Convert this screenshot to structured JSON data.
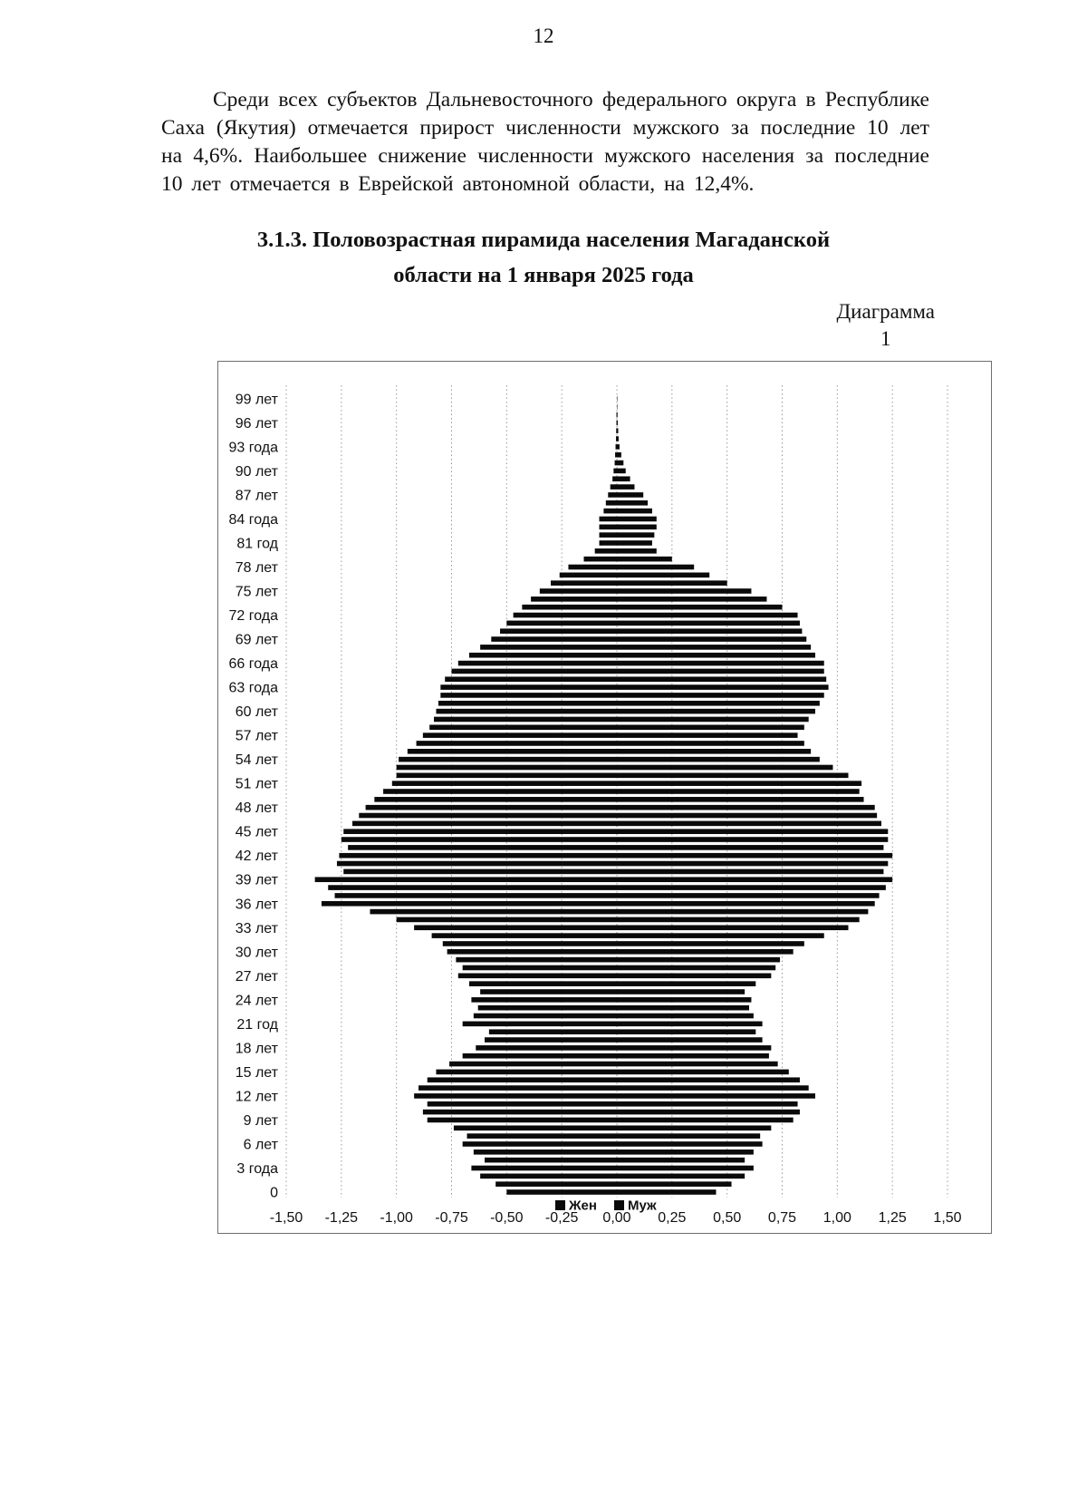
{
  "page": {
    "number": "12",
    "paragraph": "Среди всех субъектов Дальневосточного федерального округа в Республике Саха (Якутия) отмечается прирост численности мужского за последние 10 лет на 4,6%. Наибольшее снижение численности мужского населения за последние 10 лет отмечается в Еврейской автономной области, на 12,4%.",
    "heading": {
      "line1": "3.1.3. Половозрастная пирамида населения Магаданской",
      "line2": "области на 1 января 2025 года"
    },
    "diagram_caption": {
      "label": "Диаграмма",
      "number": "1"
    }
  },
  "chart_data": {
    "type": "bar",
    "subtype": "population-pyramid",
    "title": "Половозрастная пирамида населения Магаданской области на 1 января 2025 года",
    "legend": [
      "Жен",
      "Муж"
    ],
    "legend_position": "bottom-center",
    "grid": "vertical-dotted",
    "xlim": [
      -1.5,
      1.5
    ],
    "x_ticks": [
      "-1,50",
      "-1,25",
      "-1,00",
      "-0,75",
      "-0,50",
      "-0,25",
      "0,00",
      "0,25",
      "0,50",
      "0,75",
      "1,00",
      "1,25",
      "1,50"
    ],
    "age_range": [
      0,
      100
    ],
    "age_step": 1,
    "age_axis_labels": [
      {
        "age": 0,
        "label": "0"
      },
      {
        "age": 3,
        "label": "3 года"
      },
      {
        "age": 6,
        "label": "6 лет"
      },
      {
        "age": 9,
        "label": "9 лет"
      },
      {
        "age": 12,
        "label": "12 лет"
      },
      {
        "age": 15,
        "label": "15 лет"
      },
      {
        "age": 18,
        "label": "18 лет"
      },
      {
        "age": 21,
        "label": "21 год"
      },
      {
        "age": 24,
        "label": "24 лет"
      },
      {
        "age": 27,
        "label": "27 лет"
      },
      {
        "age": 30,
        "label": "30 лет"
      },
      {
        "age": 33,
        "label": "33 лет"
      },
      {
        "age": 36,
        "label": "36 лет"
      },
      {
        "age": 39,
        "label": "39 лет"
      },
      {
        "age": 42,
        "label": "42 лет"
      },
      {
        "age": 45,
        "label": "45 лет"
      },
      {
        "age": 48,
        "label": "48 лет"
      },
      {
        "age": 51,
        "label": "51 лет"
      },
      {
        "age": 54,
        "label": "54 лет"
      },
      {
        "age": 57,
        "label": "57 лет"
      },
      {
        "age": 60,
        "label": "60 лет"
      },
      {
        "age": 63,
        "label": "63 года"
      },
      {
        "age": 66,
        "label": "66 года"
      },
      {
        "age": 69,
        "label": "69 лет"
      },
      {
        "age": 72,
        "label": "72 года"
      },
      {
        "age": 75,
        "label": "75 лет"
      },
      {
        "age": 78,
        "label": "78 лет"
      },
      {
        "age": 81,
        "label": "81 год"
      },
      {
        "age": 84,
        "label": "84 года"
      },
      {
        "age": 87,
        "label": "87 лет"
      },
      {
        "age": 90,
        "label": "90 лет"
      },
      {
        "age": 93,
        "label": "93 года"
      },
      {
        "age": 96,
        "label": "96 лет"
      },
      {
        "age": 99,
        "label": "99 лет"
      }
    ],
    "series": [
      {
        "name": "Жен",
        "side": "left",
        "sign": -1,
        "values": [
          0.5,
          0.55,
          0.62,
          0.66,
          0.6,
          0.65,
          0.7,
          0.68,
          0.74,
          0.86,
          0.88,
          0.86,
          0.92,
          0.9,
          0.86,
          0.82,
          0.76,
          0.7,
          0.64,
          0.6,
          0.58,
          0.7,
          0.65,
          0.63,
          0.66,
          0.62,
          0.67,
          0.72,
          0.7,
          0.73,
          0.77,
          0.79,
          0.84,
          0.92,
          1.0,
          1.12,
          1.34,
          1.28,
          1.31,
          1.37,
          1.24,
          1.27,
          1.26,
          1.22,
          1.25,
          1.24,
          1.2,
          1.17,
          1.14,
          1.1,
          1.06,
          1.02,
          1.0,
          1.0,
          0.99,
          0.95,
          0.91,
          0.88,
          0.85,
          0.83,
          0.82,
          0.81,
          0.8,
          0.8,
          0.78,
          0.75,
          0.72,
          0.67,
          0.62,
          0.57,
          0.53,
          0.5,
          0.47,
          0.43,
          0.39,
          0.35,
          0.3,
          0.26,
          0.22,
          0.15,
          0.1,
          0.08,
          0.08,
          0.08,
          0.08,
          0.06,
          0.05,
          0.04,
          0.03,
          0.02,
          0.015,
          0.01,
          0.008,
          0.006,
          0.004,
          0.003,
          0.002,
          0.002,
          0.001,
          0.001,
          0.001
        ]
      },
      {
        "name": "Муж",
        "side": "right",
        "sign": 1,
        "values": [
          0.45,
          0.52,
          0.58,
          0.62,
          0.58,
          0.62,
          0.66,
          0.65,
          0.7,
          0.8,
          0.83,
          0.82,
          0.9,
          0.87,
          0.83,
          0.78,
          0.73,
          0.69,
          0.7,
          0.66,
          0.63,
          0.66,
          0.62,
          0.6,
          0.61,
          0.58,
          0.63,
          0.7,
          0.72,
          0.74,
          0.8,
          0.85,
          0.94,
          1.05,
          1.1,
          1.14,
          1.17,
          1.19,
          1.22,
          1.25,
          1.21,
          1.23,
          1.25,
          1.21,
          1.23,
          1.23,
          1.2,
          1.18,
          1.17,
          1.12,
          1.1,
          1.11,
          1.05,
          0.98,
          0.92,
          0.88,
          0.85,
          0.82,
          0.85,
          0.87,
          0.9,
          0.92,
          0.94,
          0.96,
          0.95,
          0.94,
          0.94,
          0.9,
          0.88,
          0.86,
          0.84,
          0.83,
          0.82,
          0.75,
          0.68,
          0.61,
          0.5,
          0.42,
          0.35,
          0.25,
          0.18,
          0.16,
          0.17,
          0.18,
          0.18,
          0.16,
          0.14,
          0.12,
          0.08,
          0.06,
          0.04,
          0.03,
          0.02,
          0.012,
          0.008,
          0.006,
          0.004,
          0.003,
          0.002,
          0.002,
          0.001
        ]
      }
    ],
    "bar_color": "#0a0a0a"
  }
}
